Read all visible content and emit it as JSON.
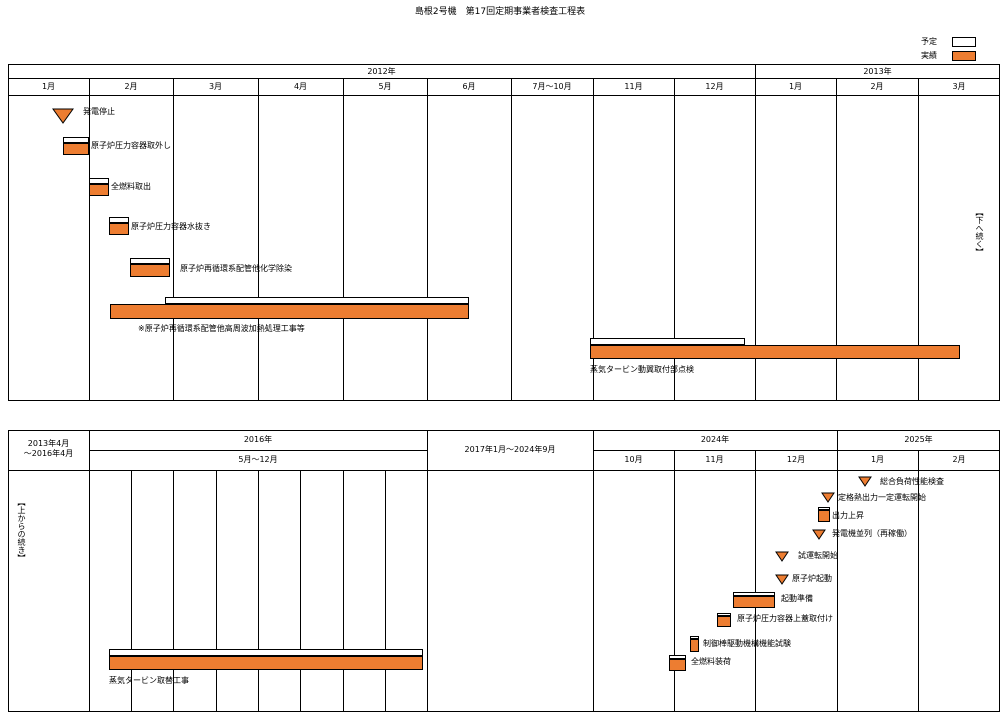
{
  "title": "島根2号機　第17回定期事業者検査工程表",
  "legend": {
    "plan": "予定",
    "actual": "実績"
  },
  "colors": {
    "actual": "#ED7D31",
    "plan": "#FFFFFF"
  },
  "top": {
    "years": [
      "2012年",
      "2013年"
    ],
    "months": [
      "1月",
      "2月",
      "3月",
      "4月",
      "5月",
      "6月",
      "7月～10月",
      "11月",
      "12月",
      "1月",
      "2月",
      "3月"
    ],
    "continue_note": "【下へ続く】",
    "tasks": [
      "発電停止",
      "原子炉圧力容器取外し",
      "全燃料取出",
      "原子炉圧力容器水抜き",
      "原子炉再循環系配管他化学除染",
      "※原子炉再循環系配管他高周波加熱処理工事等",
      "蒸気タービン動翼取付部点検"
    ]
  },
  "bottom": {
    "first_col": "2013年4月\n～2016年4月",
    "year_2016": "2016年",
    "period_2016": "5月～12月",
    "gap": "2017年1月～2024年9月",
    "year_2024": "2024年",
    "months_2024": [
      "10月",
      "11月",
      "12月"
    ],
    "year_2025": "2025年",
    "months_2025": [
      "1月",
      "2月"
    ],
    "continue_note": "【上からの続き】",
    "tasks": [
      "総合負荷性能検査",
      "定格熱出力一定運転開始",
      "出力上昇",
      "発電機並列（再稼働）",
      "試運転開始",
      "原子炉起動",
      "起動準備",
      "原子炉圧力容器上蓋取付け",
      "制御棒駆動機構機能試験",
      "全燃料装荷",
      "蒸気タービン取替工事"
    ]
  }
}
